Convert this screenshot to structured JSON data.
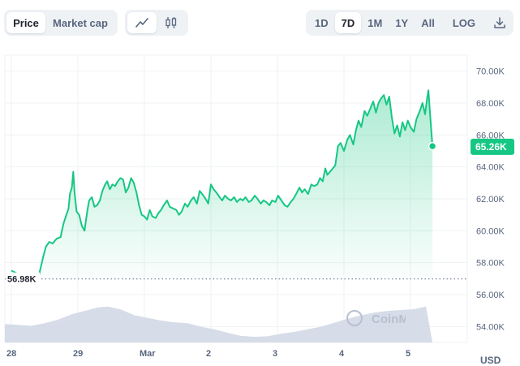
{
  "toolbar": {
    "metric_tabs": [
      "Price",
      "Market cap"
    ],
    "active_metric": 0,
    "chart_types": [
      {
        "icon": "line-chart-icon"
      },
      {
        "icon": "candlestick-icon"
      }
    ],
    "active_chart_type": 0,
    "ranges": [
      "1D",
      "7D",
      "1M",
      "1Y",
      "All"
    ],
    "active_range": 1,
    "log_label": "LOG",
    "download_icon": "download-icon"
  },
  "watermark": "CoinMarketCap",
  "colors": {
    "line": "#16c784",
    "fill_top": "#16c784",
    "volume": "#cfd6e4",
    "badge": "#16c784",
    "start_marker": "#58667e",
    "grid": "#eff2f5"
  },
  "chart_data": {
    "type": "line",
    "unit": "USD",
    "ylim": [
      53000,
      71000
    ],
    "yticks": [
      54000,
      56000,
      58000,
      60000,
      62000,
      64000,
      66000,
      68000,
      70000
    ],
    "ytick_labels": [
      "54.00K",
      "56.00K",
      "58.00K",
      "60.00K",
      "62.00K",
      "64.00K",
      "66.00K",
      "68.00K",
      "70.00K"
    ],
    "xlim": [
      0,
      6.8
    ],
    "xticks": [
      0,
      1,
      2,
      3,
      4,
      5,
      6
    ],
    "xtick_labels": [
      "28",
      "29",
      "Mar",
      "2",
      "3",
      "4",
      "5"
    ],
    "start_value": 56980,
    "start_label": "56.98K",
    "current_value": 65260,
    "current_label": "65.26K",
    "grid": true,
    "price": [
      [
        0.0,
        57.5
      ],
      [
        0.1,
        57.3
      ],
      [
        0.2,
        57.2
      ],
      [
        0.3,
        57.2
      ],
      [
        0.42,
        57.3
      ],
      [
        0.48,
        58.4
      ],
      [
        0.52,
        59.0
      ],
      [
        0.57,
        59.3
      ],
      [
        0.62,
        59.2
      ],
      [
        0.68,
        59.5
      ],
      [
        0.74,
        59.6
      ],
      [
        0.78,
        60.4
      ],
      [
        0.82,
        60.9
      ],
      [
        0.86,
        61.4
      ],
      [
        0.88,
        62.3
      ],
      [
        0.91,
        62.7
      ],
      [
        0.93,
        63.7
      ],
      [
        0.95,
        62.4
      ],
      [
        0.98,
        61.2
      ],
      [
        1.02,
        61.0
      ],
      [
        1.06,
        60.3
      ],
      [
        1.1,
        60.0
      ],
      [
        1.14,
        61.2
      ],
      [
        1.17,
        61.9
      ],
      [
        1.21,
        62.1
      ],
      [
        1.25,
        61.5
      ],
      [
        1.29,
        61.6
      ],
      [
        1.33,
        61.9
      ],
      [
        1.37,
        62.5
      ],
      [
        1.41,
        62.9
      ],
      [
        1.44,
        63.1
      ],
      [
        1.48,
        62.6
      ],
      [
        1.52,
        62.9
      ],
      [
        1.56,
        62.8
      ],
      [
        1.6,
        63.1
      ],
      [
        1.64,
        63.3
      ],
      [
        1.68,
        63.2
      ],
      [
        1.72,
        62.4
      ],
      [
        1.76,
        62.7
      ],
      [
        1.8,
        63.3
      ],
      [
        1.84,
        63.0
      ],
      [
        1.88,
        62.4
      ],
      [
        1.92,
        61.6
      ],
      [
        1.96,
        61.0
      ],
      [
        2.0,
        60.9
      ],
      [
        2.04,
        60.7
      ],
      [
        2.08,
        61.3
      ],
      [
        2.12,
        60.9
      ],
      [
        2.17,
        60.8
      ],
      [
        2.21,
        61.1
      ],
      [
        2.25,
        61.3
      ],
      [
        2.29,
        61.6
      ],
      [
        2.34,
        61.9
      ],
      [
        2.38,
        61.5
      ],
      [
        2.43,
        61.4
      ],
      [
        2.48,
        61.3
      ],
      [
        2.52,
        61.0
      ],
      [
        2.56,
        61.2
      ],
      [
        2.61,
        61.7
      ],
      [
        2.65,
        61.5
      ],
      [
        2.7,
        61.9
      ],
      [
        2.74,
        62.1
      ],
      [
        2.79,
        61.7
      ],
      [
        2.83,
        62.5
      ],
      [
        2.87,
        62.3
      ],
      [
        2.92,
        62.0
      ],
      [
        2.96,
        61.7
      ],
      [
        3.0,
        62.9
      ],
      [
        3.04,
        62.6
      ],
      [
        3.08,
        62.4
      ],
      [
        3.13,
        62.1
      ],
      [
        3.17,
        61.9
      ],
      [
        3.21,
        62.2
      ],
      [
        3.26,
        62.0
      ],
      [
        3.3,
        61.9
      ],
      [
        3.35,
        62.1
      ],
      [
        3.39,
        61.8
      ],
      [
        3.44,
        62.0
      ],
      [
        3.48,
        61.9
      ],
      [
        3.52,
        62.1
      ],
      [
        3.57,
        61.8
      ],
      [
        3.61,
        61.9
      ],
      [
        3.66,
        62.2
      ],
      [
        3.7,
        62.0
      ],
      [
        3.75,
        61.7
      ],
      [
        3.79,
        61.9
      ],
      [
        3.83,
        61.8
      ],
      [
        3.88,
        61.6
      ],
      [
        3.92,
        61.9
      ],
      [
        3.97,
        61.8
      ],
      [
        4.01,
        62.2
      ],
      [
        4.06,
        61.9
      ],
      [
        4.11,
        61.6
      ],
      [
        4.15,
        61.5
      ],
      [
        4.2,
        61.8
      ],
      [
        4.24,
        62.0
      ],
      [
        4.28,
        62.3
      ],
      [
        4.33,
        62.7
      ],
      [
        4.37,
        62.4
      ],
      [
        4.41,
        62.6
      ],
      [
        4.46,
        62.3
      ],
      [
        4.51,
        62.9
      ],
      [
        4.55,
        62.8
      ],
      [
        4.6,
        62.9
      ],
      [
        4.64,
        63.3
      ],
      [
        4.68,
        63.1
      ],
      [
        4.72,
        63.9
      ],
      [
        4.75,
        63.5
      ],
      [
        4.79,
        63.7
      ],
      [
        4.83,
        63.9
      ],
      [
        4.87,
        64.1
      ],
      [
        4.91,
        65.3
      ],
      [
        4.95,
        65.5
      ],
      [
        5.0,
        65.0
      ],
      [
        5.05,
        65.7
      ],
      [
        5.09,
        66.0
      ],
      [
        5.14,
        65.4
      ],
      [
        5.18,
        66.3
      ],
      [
        5.22,
        66.9
      ],
      [
        5.26,
        66.5
      ],
      [
        5.31,
        67.5
      ],
      [
        5.35,
        67.2
      ],
      [
        5.4,
        67.7
      ],
      [
        5.44,
        68.1
      ],
      [
        5.48,
        67.4
      ],
      [
        5.52,
        68.0
      ],
      [
        5.56,
        68.3
      ],
      [
        5.6,
        68.5
      ],
      [
        5.64,
        67.9
      ],
      [
        5.68,
        68.4
      ],
      [
        5.72,
        67.1
      ],
      [
        5.76,
        66.1
      ],
      [
        5.8,
        66.6
      ],
      [
        5.84,
        65.9
      ],
      [
        5.88,
        66.8
      ],
      [
        5.92,
        66.3
      ],
      [
        5.96,
        66.9
      ],
      [
        6.0,
        66.5
      ],
      [
        6.05,
        66.2
      ],
      [
        6.09,
        67.0
      ],
      [
        6.14,
        67.5
      ],
      [
        6.18,
        68.0
      ],
      [
        6.22,
        67.3
      ],
      [
        6.25,
        68.3
      ],
      [
        6.27,
        68.8
      ],
      [
        6.3,
        67.0
      ],
      [
        6.33,
        65.3
      ]
    ],
    "volume": [
      [
        0.0,
        0.42
      ],
      [
        0.2,
        0.4
      ],
      [
        0.4,
        0.38
      ],
      [
        0.6,
        0.44
      ],
      [
        0.8,
        0.52
      ],
      [
        1.0,
        0.64
      ],
      [
        1.2,
        0.72
      ],
      [
        1.4,
        0.8
      ],
      [
        1.55,
        0.82
      ],
      [
        1.75,
        0.75
      ],
      [
        1.95,
        0.62
      ],
      [
        2.15,
        0.56
      ],
      [
        2.35,
        0.5
      ],
      [
        2.55,
        0.46
      ],
      [
        2.75,
        0.44
      ],
      [
        2.95,
        0.36
      ],
      [
        3.15,
        0.3
      ],
      [
        3.35,
        0.22
      ],
      [
        3.55,
        0.15
      ],
      [
        3.75,
        0.13
      ],
      [
        3.95,
        0.14
      ],
      [
        4.15,
        0.2
      ],
      [
        4.35,
        0.24
      ],
      [
        4.55,
        0.3
      ],
      [
        4.75,
        0.36
      ],
      [
        4.95,
        0.45
      ],
      [
        5.15,
        0.54
      ],
      [
        5.35,
        0.62
      ],
      [
        5.55,
        0.68
      ],
      [
        5.75,
        0.72
      ],
      [
        5.95,
        0.74
      ],
      [
        6.15,
        0.76
      ],
      [
        6.33,
        0.82
      ]
    ]
  }
}
